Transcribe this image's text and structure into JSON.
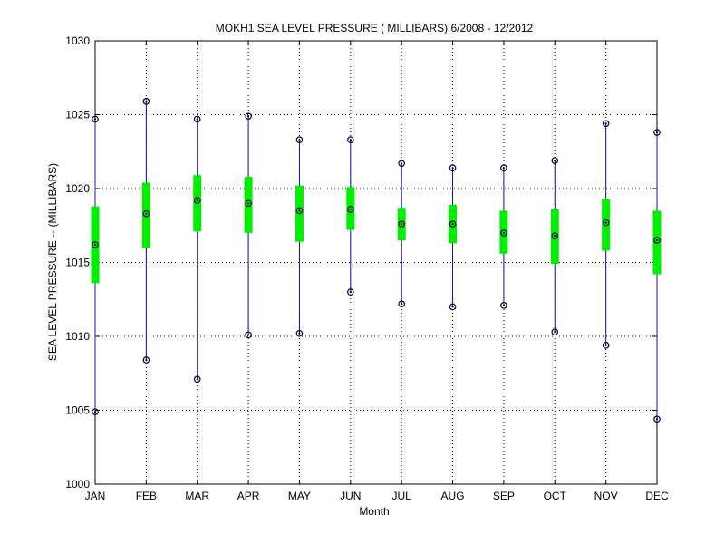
{
  "chart_data": {
    "type": "box",
    "title": "MOKH1  SEA LEVEL PRESSURE ( MILLIBARS) 6/2008 - 12/2012",
    "xlabel": "Month",
    "ylabel": "SEA LEVEL PRESSURE -- (MILLIBARS)",
    "ylim": [
      1000,
      1030
    ],
    "yticks": [
      1000,
      1005,
      1010,
      1015,
      1020,
      1025,
      1030
    ],
    "grid": true,
    "categories": [
      "JAN",
      "FEB",
      "MAR",
      "APR",
      "MAY",
      "JUN",
      "JUL",
      "AUG",
      "SEP",
      "OCT",
      "NOV",
      "DEC"
    ],
    "series": [
      {
        "values": [
          {
            "min": 1004.9,
            "q1": 1013.6,
            "median": 1016.2,
            "q3": 1018.8,
            "max": 1024.7
          },
          {
            "min": 1008.4,
            "q1": 1016.0,
            "median": 1018.3,
            "q3": 1020.4,
            "max": 1025.9
          },
          {
            "min": 1007.1,
            "q1": 1017.1,
            "median": 1019.2,
            "q3": 1020.9,
            "max": 1024.7
          },
          {
            "min": 1010.1,
            "q1": 1017.0,
            "median": 1019.0,
            "q3": 1020.8,
            "max": 1024.9
          },
          {
            "min": 1010.2,
            "q1": 1016.4,
            "median": 1018.5,
            "q3": 1020.2,
            "max": 1023.3
          },
          {
            "min": 1013.0,
            "q1": 1017.2,
            "median": 1018.6,
            "q3": 1020.1,
            "max": 1023.3
          },
          {
            "min": 1012.2,
            "q1": 1016.5,
            "median": 1017.6,
            "q3": 1018.7,
            "max": 1021.7
          },
          {
            "min": 1012.0,
            "q1": 1016.3,
            "median": 1017.6,
            "q3": 1018.9,
            "max": 1021.4
          },
          {
            "min": 1012.1,
            "q1": 1015.6,
            "median": 1017.0,
            "q3": 1018.5,
            "max": 1021.4
          },
          {
            "min": 1010.3,
            "q1": 1014.9,
            "median": 1016.8,
            "q3": 1018.6,
            "max": 1021.9
          },
          {
            "min": 1009.4,
            "q1": 1015.8,
            "median": 1017.7,
            "q3": 1019.3,
            "max": 1024.4
          },
          {
            "min": 1004.4,
            "q1": 1014.2,
            "median": 1016.5,
            "q3": 1018.5,
            "max": 1023.8
          }
        ]
      }
    ],
    "colors": {
      "whisker": "#1414a0",
      "box": "#00ee00",
      "marker_stroke": "#000033",
      "grid": "#000000",
      "axis": "#000000"
    }
  }
}
